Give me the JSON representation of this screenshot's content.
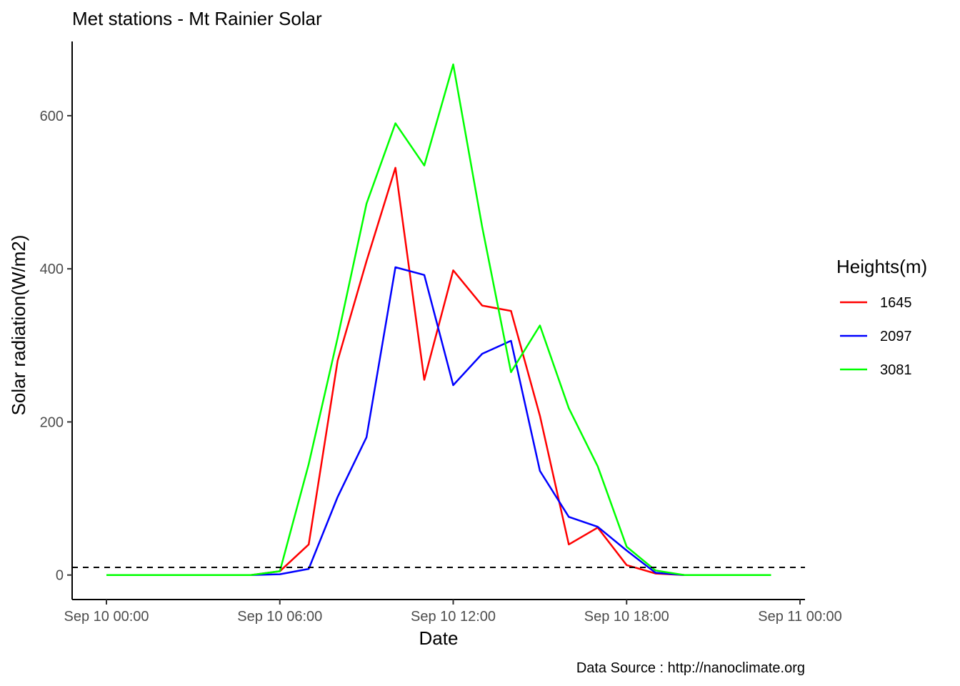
{
  "chart_data": {
    "type": "line",
    "title": "Met stations -  Mt Rainier  Solar",
    "xlabel": "Date",
    "ylabel": "Solar radiation(W/m2)",
    "caption": "Data Source : http://nanoclimate.org",
    "x_axis": {
      "type": "datetime",
      "range": [
        "Sep 10 00:00",
        "Sep 11 00:00"
      ],
      "ticks": [
        {
          "hour": 0,
          "label": "Sep 10 00:00"
        },
        {
          "hour": 6,
          "label": "Sep 10 06:00"
        },
        {
          "hour": 12,
          "label": "Sep 10 12:00"
        },
        {
          "hour": 18,
          "label": "Sep 10 18:00"
        },
        {
          "hour": 24,
          "label": "Sep 11 00:00"
        }
      ]
    },
    "y_axis": {
      "ylim": [
        -32,
        697
      ],
      "ticks": [
        0,
        200,
        400,
        600
      ]
    },
    "reference_line": {
      "y": 10,
      "style": "dashed",
      "color": "#000000"
    },
    "grid": false,
    "legend": {
      "title": "Heights(m)",
      "position": "right"
    },
    "hours": [
      0,
      1,
      2,
      3,
      4,
      5,
      6,
      7,
      8,
      9,
      10,
      11,
      12,
      13,
      14,
      15,
      16,
      17,
      18,
      19,
      20,
      21,
      22,
      23
    ],
    "series": [
      {
        "name": "1645",
        "color": "#ff0000",
        "values": [
          0,
          0,
          0,
          0,
          0,
          0,
          5,
          40,
          280,
          410,
          532,
          255,
          398,
          352,
          345,
          208,
          40,
          62,
          13,
          2,
          0,
          0,
          0,
          0
        ]
      },
      {
        "name": "2097",
        "color": "#0000ff",
        "values": [
          0,
          0,
          0,
          0,
          0,
          0,
          1,
          8,
          102,
          180,
          402,
          392,
          248,
          289,
          306,
          136,
          76,
          63,
          32,
          3,
          0,
          0,
          0,
          0
        ]
      },
      {
        "name": "3081",
        "color": "#00ff00",
        "values": [
          0,
          0,
          0,
          0,
          0,
          0,
          5,
          145,
          310,
          485,
          590,
          535,
          667,
          455,
          265,
          326,
          218,
          142,
          37,
          6,
          0,
          0,
          0,
          0
        ]
      }
    ]
  }
}
